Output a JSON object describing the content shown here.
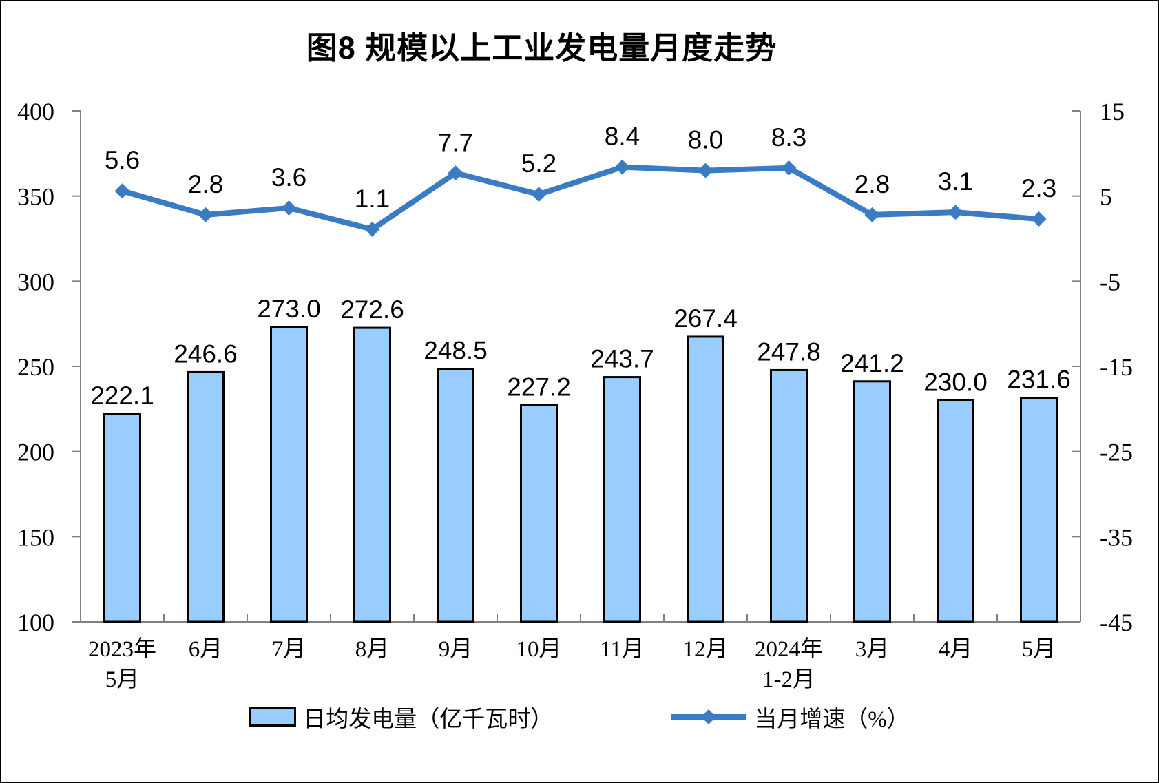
{
  "title": "图8 规模以上工业发电量月度走势",
  "chart_data": {
    "type": "bar+line combo",
    "title": "图8 规模以上工业发电量月度走势",
    "grid": false,
    "legend_position": "bottom",
    "categories": [
      {
        "line1": "2023年",
        "line2": "5月"
      },
      {
        "line1": "6月"
      },
      {
        "line1": "7月"
      },
      {
        "line1": "8月"
      },
      {
        "line1": "9月"
      },
      {
        "line1": "10月"
      },
      {
        "line1": "11月"
      },
      {
        "line1": "12月"
      },
      {
        "line1": "2024年",
        "line2": "1-2月"
      },
      {
        "line1": "3月"
      },
      {
        "line1": "4月"
      },
      {
        "line1": "5月"
      }
    ],
    "series": [
      {
        "name": "日均发电量（亿千瓦时）",
        "type": "bar",
        "axis": "left",
        "fill": "#99CCFF",
        "border": "#000000",
        "values": [
          222.1,
          246.6,
          273.0,
          272.6,
          248.5,
          227.2,
          243.7,
          267.4,
          247.8,
          241.2,
          230.0,
          231.6
        ]
      },
      {
        "name": "当月增速（%）",
        "type": "line",
        "axis": "right",
        "color": "#3A7CC4",
        "marker": "diamond",
        "values": [
          5.6,
          2.8,
          3.6,
          1.1,
          7.7,
          5.2,
          8.4,
          8.0,
          8.3,
          2.8,
          3.1,
          2.3
        ]
      }
    ],
    "left_axis": {
      "min": 100,
      "max": 400,
      "step": 50,
      "ticks": [
        400,
        350,
        300,
        250,
        200,
        150,
        100
      ]
    },
    "right_axis": {
      "min": -45,
      "max": 15,
      "step": 10,
      "ticks": [
        15,
        5,
        -5,
        -15,
        -25,
        -35,
        -45
      ]
    },
    "colors": {
      "axis": "#808080",
      "label": "#000000"
    }
  }
}
